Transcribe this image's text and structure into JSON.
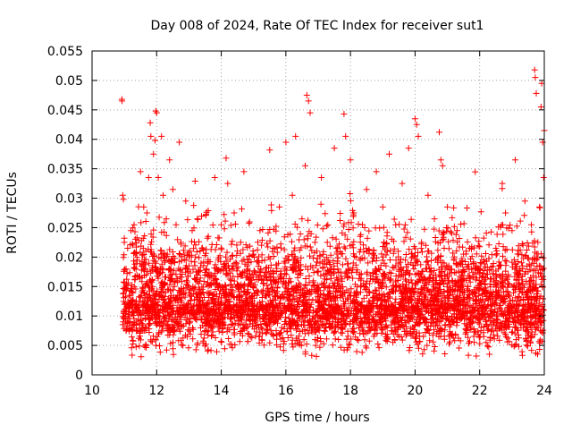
{
  "chart_data": {
    "type": "scatter",
    "title": "Day 008 of 2024, Rate Of TEC Index for receiver sut1",
    "xlabel": "GPS time / hours",
    "ylabel": "ROTI / TECUs",
    "xlim": [
      10,
      24
    ],
    "ylim": [
      0,
      0.055
    ],
    "xticks": [
      10,
      12,
      14,
      16,
      18,
      20,
      22,
      24
    ],
    "yticks": [
      0,
      0.005,
      0.01,
      0.015,
      0.02,
      0.025,
      0.03,
      0.035,
      0.04,
      0.045,
      0.05,
      0.055
    ],
    "xtick_labels": [
      "10",
      "12",
      "14",
      "16",
      "18",
      "20",
      "22",
      "24"
    ],
    "ytick_labels": [
      "0",
      "0.005",
      "0.01",
      "0.015",
      "0.02",
      "0.025",
      "0.03",
      "0.035",
      "0.04",
      "0.045",
      "0.05",
      "0.055"
    ],
    "grid": true,
    "marker": "plus",
    "color": "#ff0000",
    "points": [
      [
        10.92,
        0.0468
      ],
      [
        10.93,
        0.0465
      ],
      [
        10.95,
        0.0305
      ],
      [
        10.97,
        0.0298
      ],
      [
        11.0,
        0.0225
      ],
      [
        11.05,
        0.0075
      ],
      [
        11.1,
        0.0215
      ],
      [
        11.15,
        0.0135
      ],
      [
        11.2,
        0.0245
      ],
      [
        11.25,
        0.0085
      ],
      [
        11.3,
        0.0255
      ],
      [
        11.35,
        0.0115
      ],
      [
        11.4,
        0.0195
      ],
      [
        11.45,
        0.0062
      ],
      [
        11.5,
        0.0345
      ],
      [
        11.55,
        0.0165
      ],
      [
        11.6,
        0.0285
      ],
      [
        11.65,
        0.0095
      ],
      [
        11.7,
        0.0275
      ],
      [
        11.75,
        0.0335
      ],
      [
        11.8,
        0.0428
      ],
      [
        11.82,
        0.0405
      ],
      [
        11.85,
        0.0125
      ],
      [
        11.9,
        0.0375
      ],
      [
        11.95,
        0.0398
      ],
      [
        11.97,
        0.0448
      ],
      [
        12.0,
        0.0445
      ],
      [
        12.05,
        0.0335
      ],
      [
        12.1,
        0.0105
      ],
      [
        12.15,
        0.0405
      ],
      [
        12.2,
        0.0305
      ],
      [
        12.25,
        0.0155
      ],
      [
        12.3,
        0.0265
      ],
      [
        12.35,
        0.0085
      ],
      [
        12.4,
        0.0365
      ],
      [
        12.45,
        0.0195
      ],
      [
        12.5,
        0.0315
      ],
      [
        12.55,
        0.0075
      ],
      [
        12.6,
        0.0255
      ],
      [
        12.65,
        0.0135
      ],
      [
        12.7,
        0.0395
      ],
      [
        12.75,
        0.0225
      ],
      [
        12.8,
        0.0115
      ],
      [
        12.85,
        0.0205
      ],
      [
        12.9,
        0.0295
      ],
      [
        12.95,
        0.0065
      ],
      [
        13.0,
        0.0185
      ],
      [
        13.1,
        0.0245
      ],
      [
        13.2,
        0.0095
      ],
      [
        13.3,
        0.0155
      ],
      [
        13.4,
        0.0215
      ],
      [
        13.5,
        0.0075
      ],
      [
        13.6,
        0.0235
      ],
      [
        13.7,
        0.0125
      ],
      [
        13.8,
        0.0335
      ],
      [
        13.9,
        0.0195
      ],
      [
        14.0,
        0.0255
      ],
      [
        14.1,
        0.0085
      ],
      [
        14.15,
        0.0368
      ],
      [
        14.2,
        0.0325
      ],
      [
        14.3,
        0.0145
      ],
      [
        14.4,
        0.0275
      ],
      [
        14.5,
        0.0105
      ],
      [
        14.6,
        0.0225
      ],
      [
        14.7,
        0.0345
      ],
      [
        14.8,
        0.0185
      ],
      [
        14.9,
        0.0065
      ],
      [
        15.0,
        0.0205
      ],
      [
        15.1,
        0.0135
      ],
      [
        15.2,
        0.0245
      ],
      [
        15.3,
        0.0095
      ],
      [
        15.4,
        0.0165
      ],
      [
        15.5,
        0.0382
      ],
      [
        15.6,
        0.0215
      ],
      [
        15.7,
        0.0075
      ],
      [
        15.8,
        0.0285
      ],
      [
        15.9,
        0.0155
      ],
      [
        16.0,
        0.0395
      ],
      [
        16.1,
        0.0115
      ],
      [
        16.2,
        0.0305
      ],
      [
        16.3,
        0.0405
      ],
      [
        16.4,
        0.0185
      ],
      [
        16.5,
        0.0265
      ],
      [
        16.6,
        0.0355
      ],
      [
        16.65,
        0.0475
      ],
      [
        16.7,
        0.0465
      ],
      [
        16.75,
        0.0445
      ],
      [
        16.8,
        0.0145
      ],
      [
        16.9,
        0.0225
      ],
      [
        17.0,
        0.0085
      ],
      [
        17.1,
        0.0335
      ],
      [
        17.2,
        0.0195
      ],
      [
        17.3,
        0.0255
      ],
      [
        17.4,
        0.0125
      ],
      [
        17.5,
        0.0385
      ],
      [
        17.6,
        0.0215
      ],
      [
        17.7,
        0.0105
      ],
      [
        17.8,
        0.0443
      ],
      [
        17.85,
        0.0405
      ],
      [
        17.9,
        0.0165
      ],
      [
        18.0,
        0.0365
      ],
      [
        18.1,
        0.0275
      ],
      [
        18.2,
        0.0095
      ],
      [
        18.3,
        0.0235
      ],
      [
        18.4,
        0.0155
      ],
      [
        18.5,
        0.0315
      ],
      [
        18.6,
        0.0075
      ],
      [
        18.7,
        0.0205
      ],
      [
        18.8,
        0.0345
      ],
      [
        18.9,
        0.0135
      ],
      [
        19.0,
        0.0285
      ],
      [
        19.1,
        0.0185
      ],
      [
        19.2,
        0.0375
      ],
      [
        19.3,
        0.0115
      ],
      [
        19.4,
        0.0255
      ],
      [
        19.5,
        0.0065
      ],
      [
        19.6,
        0.0325
      ],
      [
        19.7,
        0.0195
      ],
      [
        19.8,
        0.0385
      ],
      [
        19.9,
        0.0145
      ],
      [
        20.0,
        0.0435
      ],
      [
        20.05,
        0.0425
      ],
      [
        20.1,
        0.0405
      ],
      [
        20.2,
        0.0225
      ],
      [
        20.3,
        0.0095
      ],
      [
        20.4,
        0.0305
      ],
      [
        20.5,
        0.0175
      ],
      [
        20.6,
        0.0265
      ],
      [
        20.7,
        0.0125
      ],
      [
        20.75,
        0.0412
      ],
      [
        20.8,
        0.0365
      ],
      [
        20.85,
        0.0355
      ],
      [
        20.9,
        0.0215
      ],
      [
        21.0,
        0.0285
      ],
      [
        21.1,
        0.0085
      ],
      [
        21.2,
        0.0195
      ],
      [
        21.3,
        0.0245
      ],
      [
        21.4,
        0.0135
      ],
      [
        21.5,
        0.0205
      ],
      [
        21.6,
        0.0075
      ],
      [
        21.7,
        0.0165
      ],
      [
        21.8,
        0.0115
      ],
      [
        21.9,
        0.0185
      ],
      [
        22.0,
        0.0095
      ],
      [
        22.1,
        0.0145
      ],
      [
        22.2,
        0.0055
      ],
      [
        22.3,
        0.0035
      ],
      [
        22.4,
        0.0125
      ],
      [
        22.5,
        0.0215
      ],
      [
        22.6,
        0.0185
      ],
      [
        22.7,
        0.0325
      ],
      [
        22.8,
        0.0275
      ],
      [
        22.9,
        0.0155
      ],
      [
        23.0,
        0.0245
      ],
      [
        23.1,
        0.0365
      ],
      [
        23.2,
        0.0205
      ],
      [
        23.3,
        0.0095
      ],
      [
        23.4,
        0.0295
      ],
      [
        23.5,
        0.0175
      ],
      [
        23.6,
        0.0255
      ],
      [
        23.7,
        0.0518
      ],
      [
        23.72,
        0.0505
      ],
      [
        23.75,
        0.0478
      ],
      [
        23.8,
        0.0225
      ],
      [
        23.85,
        0.0285
      ],
      [
        23.9,
        0.0455
      ],
      [
        23.92,
        0.0495
      ],
      [
        23.95,
        0.0395
      ],
      [
        23.98,
        0.0335
      ],
      [
        24.0,
        0.0415
      ]
    ],
    "band": {
      "x_start": 10.95,
      "x_end": 23.98,
      "baseline": 0.012,
      "spread": 0.0045,
      "min": 0.003,
      "count": 4500,
      "seed": 8
    }
  }
}
